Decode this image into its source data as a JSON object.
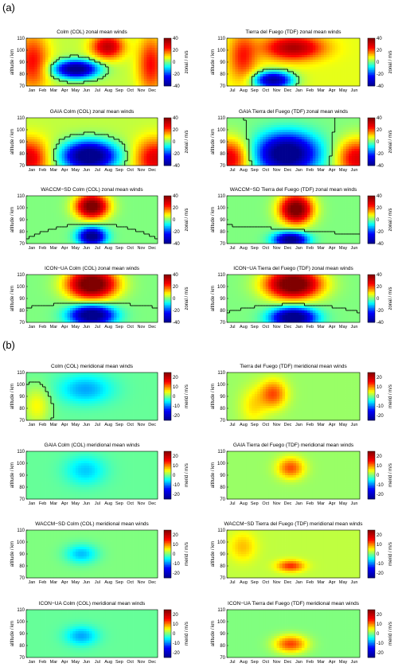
{
  "section_labels": [
    "(a)",
    "(b)"
  ],
  "months_jan": [
    "Jan",
    "Feb",
    "Mar",
    "Apr",
    "May",
    "Jun",
    "Jul",
    "Aug",
    "Sep",
    "Oct",
    "Nov",
    "Dec"
  ],
  "months_jul": [
    "Jul",
    "Aug",
    "Sep",
    "Oct",
    "Nov",
    "Dec",
    "Jan",
    "Feb",
    "Mar",
    "Apr",
    "May",
    "Jun"
  ],
  "ylabel": "altitude / km",
  "zonal_cbar_label": "zonal / m/s",
  "merid_cbar_label": "merid / m/s",
  "zonal_cbar_ticks": [
    40,
    20,
    0,
    -20,
    -40
  ],
  "merid_cbar_ticks": [
    20,
    10,
    0,
    -10,
    -20
  ],
  "colors": {
    "colormap": [
      "#00008f",
      "#0000ff",
      "#00ffff",
      "#ffff00",
      "#ff0000",
      "#800000"
    ],
    "contour": "#000000"
  },
  "chart_data": [
    {
      "type": "heatmap",
      "title": "Colm (COL) zonal mean winds",
      "xaxis": "jan",
      "quantity": "zonal",
      "pattern": "col_zonal_obs",
      "ylim": [
        70,
        110
      ],
      "yticks": [
        70,
        80,
        90,
        100,
        110
      ],
      "zlim": [
        -40,
        40
      ]
    },
    {
      "type": "heatmap",
      "title": "Tierra del Fuego (TDF) zonal mean winds",
      "xaxis": "jul",
      "quantity": "zonal",
      "pattern": "tdf_zonal_obs",
      "ylim": [
        70,
        110
      ],
      "yticks": [
        70,
        80,
        90,
        100,
        110
      ],
      "zlim": [
        -40,
        40
      ]
    },
    {
      "type": "heatmap",
      "title": "GAIA Colm (COL) zonal mean winds",
      "xaxis": "jan",
      "quantity": "zonal",
      "pattern": "col_zonal_model",
      "ylim": [
        70,
        110
      ],
      "yticks": [
        70,
        80,
        90,
        100,
        110
      ],
      "zlim": [
        -40,
        40
      ]
    },
    {
      "type": "heatmap",
      "title": "GAIA Tierra del Fuego (TDF) zonal mean winds",
      "xaxis": "jul",
      "quantity": "zonal",
      "pattern": "tdf_zonal_gaia",
      "ylim": [
        70,
        110
      ],
      "yticks": [
        70,
        80,
        90,
        100,
        110
      ],
      "zlim": [
        -40,
        40
      ]
    },
    {
      "type": "heatmap",
      "title": "WACCM−SD Colm (COL) zonal mean winds",
      "xaxis": "jan",
      "quantity": "zonal",
      "pattern": "col_zonal_model2",
      "ylim": [
        70,
        110
      ],
      "yticks": [
        70,
        80,
        90,
        100,
        110
      ],
      "zlim": [
        -40,
        40
      ]
    },
    {
      "type": "heatmap",
      "title": "WACCM−SD Tierra del Fuego (TDF) zonal mean winds",
      "xaxis": "jul",
      "quantity": "zonal",
      "pattern": "tdf_zonal_model2",
      "ylim": [
        70,
        110
      ],
      "yticks": [
        70,
        80,
        90,
        100,
        110
      ],
      "zlim": [
        -40,
        40
      ]
    },
    {
      "type": "heatmap",
      "title": "ICON−UA Colm (COL) zonal mean winds",
      "xaxis": "jan",
      "quantity": "zonal",
      "pattern": "col_zonal_model3",
      "ylim": [
        70,
        110
      ],
      "yticks": [
        70,
        80,
        90,
        100,
        110
      ],
      "zlim": [
        -40,
        40
      ]
    },
    {
      "type": "heatmap",
      "title": "ICON−UA Tierra del Fuego (TDF) zonal mean winds",
      "xaxis": "jul",
      "quantity": "zonal",
      "pattern": "tdf_zonal_model3",
      "ylim": [
        70,
        110
      ],
      "yticks": [
        70,
        80,
        90,
        100,
        110
      ],
      "zlim": [
        -40,
        40
      ]
    },
    {
      "type": "heatmap",
      "title": "Colm (COL) meridional mean winds",
      "xaxis": "jan",
      "quantity": "merid",
      "pattern": "col_merid_obs",
      "ylim": [
        70,
        110
      ],
      "yticks": [
        70,
        80,
        90,
        100,
        110
      ],
      "zlim": [
        -25,
        25
      ]
    },
    {
      "type": "heatmap",
      "title": "Tierra del Fuego (TDF) meridional mean winds",
      "xaxis": "jul",
      "quantity": "merid",
      "pattern": "tdf_merid_obs",
      "ylim": [
        70,
        110
      ],
      "yticks": [
        70,
        80,
        90,
        100,
        110
      ],
      "zlim": [
        -25,
        25
      ]
    },
    {
      "type": "heatmap",
      "title": "GAIA Colm (COL) meridional mean winds",
      "xaxis": "jan",
      "quantity": "merid",
      "pattern": "col_merid_gaia",
      "ylim": [
        70,
        110
      ],
      "yticks": [
        70,
        80,
        90,
        100,
        110
      ],
      "zlim": [
        -25,
        25
      ]
    },
    {
      "type": "heatmap",
      "title": "GAIA Tierra del Fuego (TDF) meridional mean winds",
      "xaxis": "jul",
      "quantity": "merid",
      "pattern": "tdf_merid_gaia",
      "ylim": [
        70,
        110
      ],
      "yticks": [
        70,
        80,
        90,
        100,
        110
      ],
      "zlim": [
        -25,
        25
      ]
    },
    {
      "type": "heatmap",
      "title": "WACCM−SD Colm (COL)  meridional mean winds",
      "xaxis": "jan",
      "quantity": "merid",
      "pattern": "col_merid_waccm",
      "ylim": [
        70,
        110
      ],
      "yticks": [
        70,
        80,
        90,
        100,
        110
      ],
      "zlim": [
        -25,
        25
      ]
    },
    {
      "type": "heatmap",
      "title": "WACCM−SD Tierra del Fuego (TDF) meridional mean winds",
      "xaxis": "jul",
      "quantity": "merid",
      "pattern": "tdf_merid_waccm",
      "ylim": [
        70,
        110
      ],
      "yticks": [
        70,
        80,
        90,
        100,
        110
      ],
      "zlim": [
        -25,
        25
      ]
    },
    {
      "type": "heatmap",
      "title": "ICON−UA Colm (COL)  meridional mean winds",
      "xaxis": "jan",
      "quantity": "merid",
      "pattern": "col_merid_icon",
      "ylim": [
        70,
        110
      ],
      "yticks": [
        70,
        80,
        90,
        100,
        110
      ],
      "zlim": [
        -25,
        25
      ]
    },
    {
      "type": "heatmap",
      "title": "ICON−UA Tierra del Fuego (TDF) meridional mean winds",
      "xaxis": "jul",
      "quantity": "merid",
      "pattern": "tdf_merid_icon",
      "ylim": [
        70,
        110
      ],
      "yticks": [
        70,
        80,
        90,
        100,
        110
      ],
      "zlim": [
        -25,
        25
      ]
    }
  ]
}
